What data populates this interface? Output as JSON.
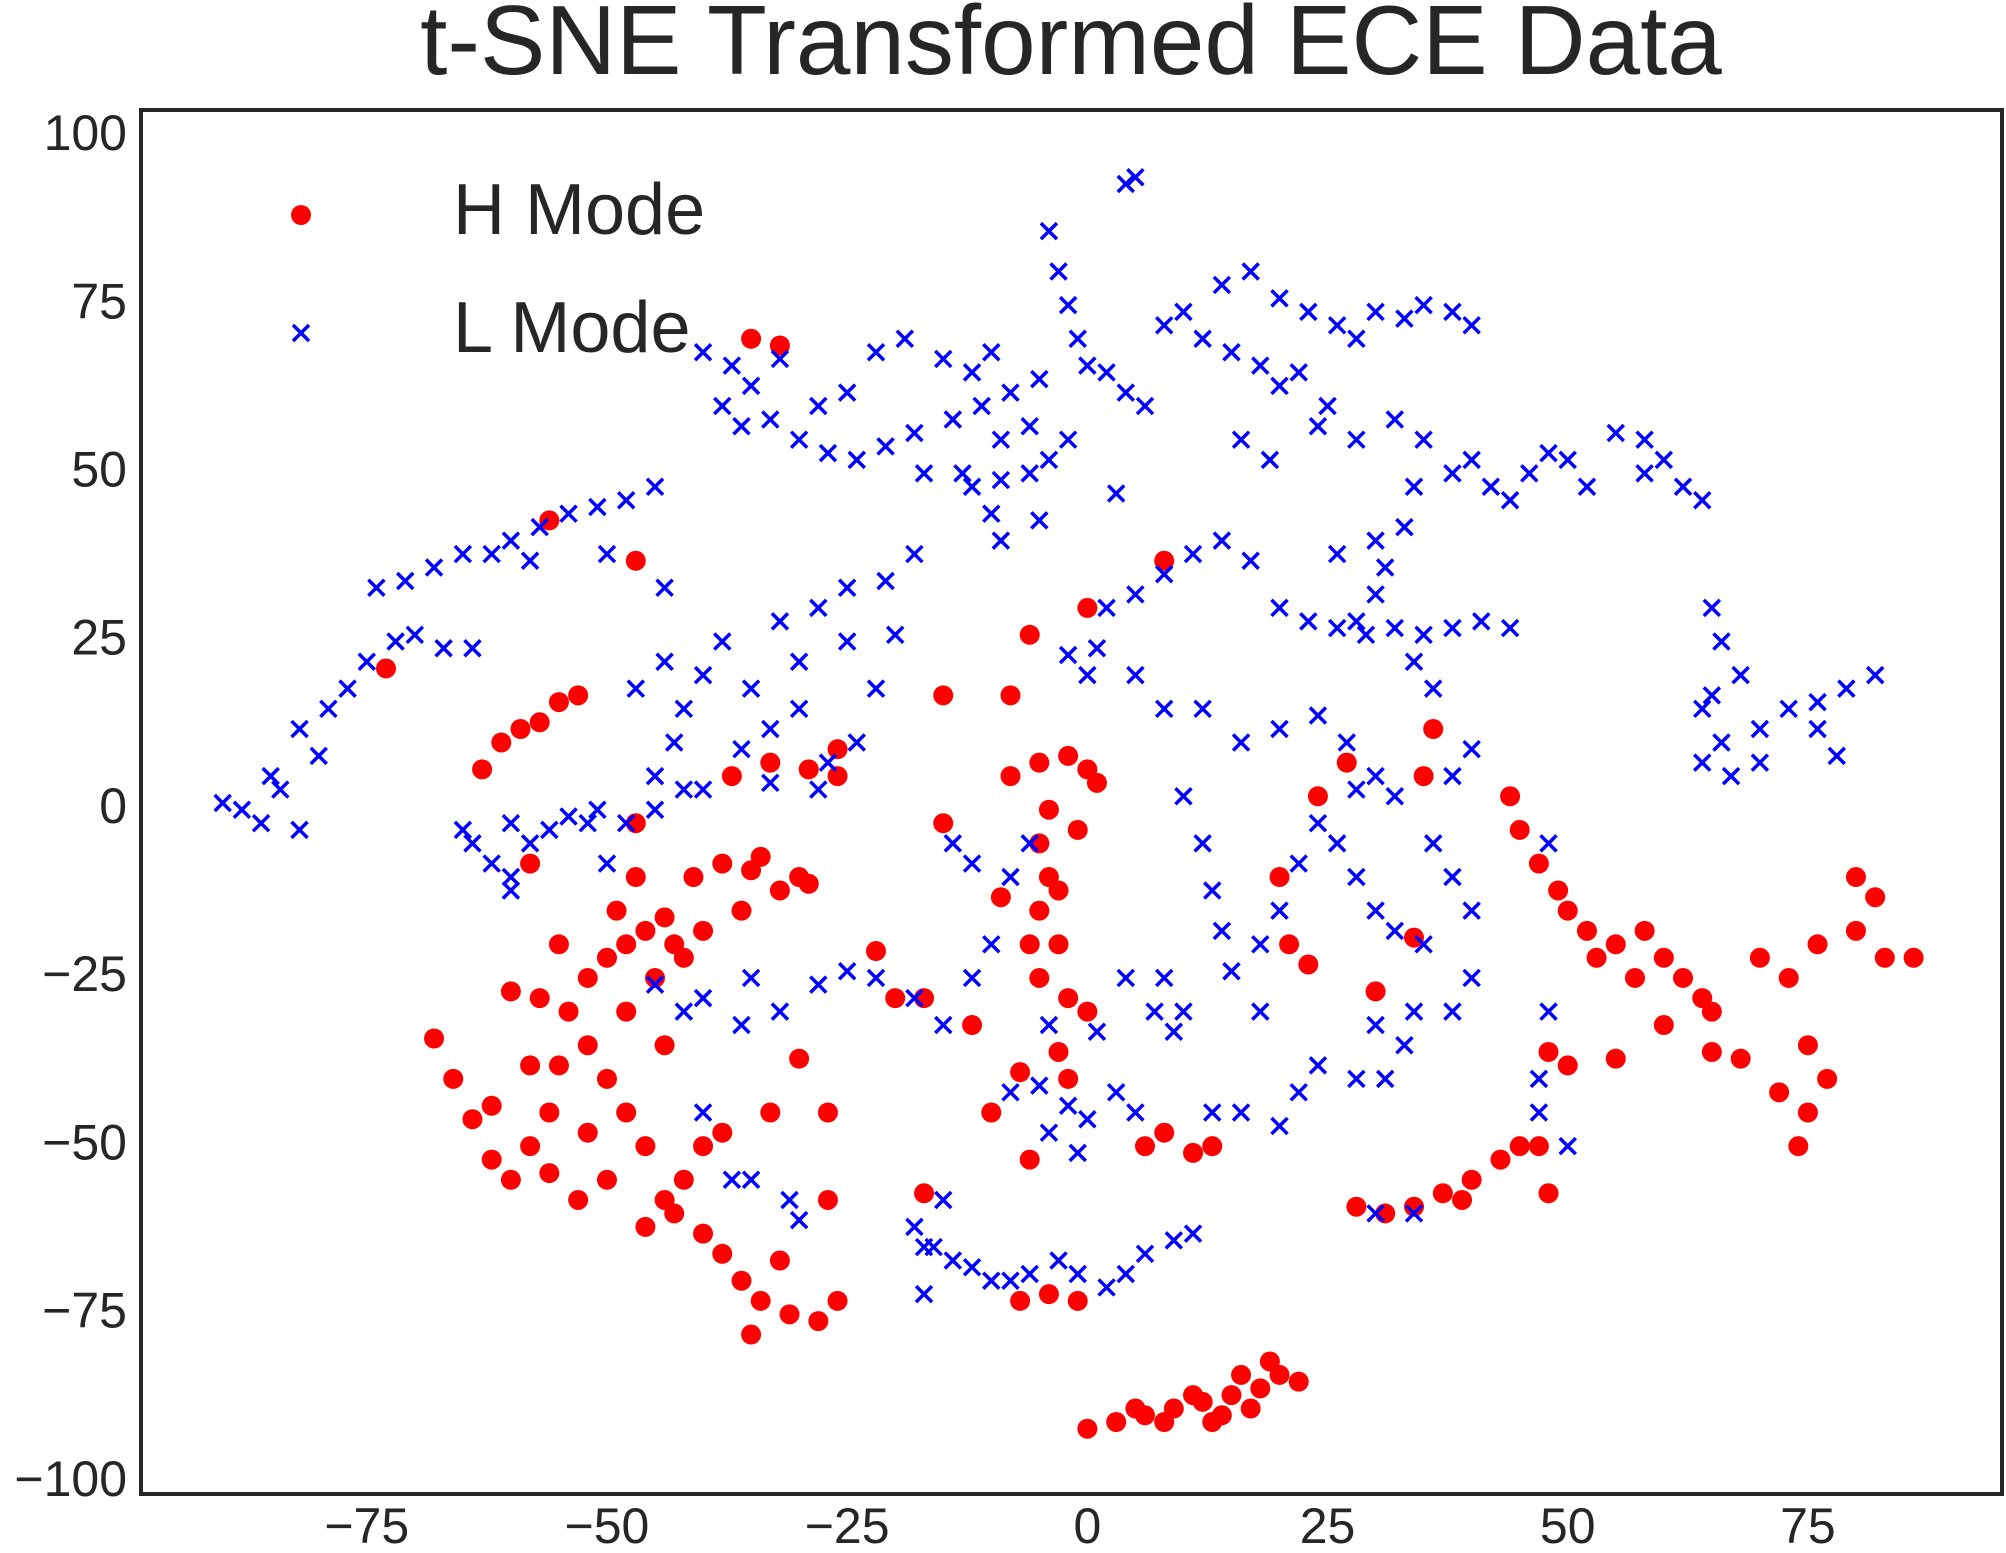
{
  "chart_data": {
    "type": "scatter",
    "title": "t-SNE Transformed ECE Data",
    "xlim": [
      -98.5,
      95.2
    ],
    "ylim": [
      -101.7,
      104
    ],
    "xticks": [
      {
        "value": -75,
        "label": "−75"
      },
      {
        "value": -50,
        "label": "−50"
      },
      {
        "value": -25,
        "label": "−25"
      },
      0,
      25,
      50,
      75
    ],
    "yticks": [
      {
        "value": -100,
        "label": "−100"
      },
      {
        "value": -75,
        "label": "−75"
      },
      {
        "value": -50,
        "label": "−50"
      },
      {
        "value": -25,
        "label": "−25"
      },
      0,
      25,
      50,
      75,
      100
    ],
    "grid": false,
    "legend": "upper left",
    "series": [
      {
        "name": "H Mode",
        "color": "#ff0000",
        "marker": "circle",
        "x": [
          0,
          3,
          6,
          9,
          12,
          15,
          18,
          20,
          22,
          8,
          14,
          17,
          19,
          11,
          5,
          16,
          13,
          -68,
          -66,
          -64,
          -62,
          -60,
          -58,
          -56,
          -55,
          -57,
          -60,
          -54,
          -52,
          -50,
          -48,
          -46,
          -44,
          -52,
          -50,
          -48,
          -46,
          -50,
          -53,
          -56,
          -48,
          -45,
          -44,
          -42,
          -47,
          -58,
          -62,
          -40,
          -42,
          -46,
          -38,
          -52,
          -55,
          -49,
          -41,
          -38,
          -35,
          -32,
          -30,
          -36,
          -40,
          -43,
          -34,
          -29,
          -8,
          -5,
          -2,
          0,
          -4,
          -5,
          -4,
          -5,
          -3,
          -5,
          -2,
          0,
          -6,
          -3,
          -1,
          1,
          44,
          45,
          47,
          49,
          50,
          52,
          55,
          58,
          60,
          62,
          64,
          65,
          57,
          53,
          70,
          73,
          76,
          80,
          83,
          86,
          80,
          82,
          75,
          77,
          75,
          74,
          72,
          68,
          65,
          60,
          55,
          50,
          48,
          -43,
          -40,
          -38,
          -36,
          -34,
          -31,
          -28,
          -26,
          -32,
          -35,
          -44,
          28,
          31,
          34,
          37,
          40,
          43,
          45,
          47,
          39,
          48,
          -61,
          -59,
          -57,
          -55,
          -53,
          -63,
          -47,
          -56,
          -73,
          -30,
          -33,
          -27,
          -27,
          -7,
          -4,
          -1,
          8,
          11,
          6,
          13,
          21,
          24,
          20,
          23,
          -22,
          -17,
          -12,
          -7,
          -9,
          -15,
          8,
          0,
          -6,
          -8,
          -15,
          -26,
          -33,
          -37,
          -47,
          -58,
          -35,
          -32,
          -17,
          -6,
          -10,
          -3,
          36,
          35,
          27,
          34,
          30,
          -29,
          -26,
          -20,
          -2
        ],
        "y": [
          -92,
          -91,
          -90,
          -89,
          -88,
          -87,
          -86,
          -84,
          -85,
          -91,
          -90,
          -89,
          -82,
          -87,
          -89,
          -84,
          -91,
          -34,
          -40,
          -46,
          -52,
          -55,
          -50,
          -45,
          -38,
          -28,
          -27,
          -30,
          -25,
          -22,
          -20,
          -18,
          -16,
          -35,
          -40,
          -45,
          -50,
          -55,
          -58,
          -54,
          -30,
          -25,
          -35,
          -22,
          -10,
          -38,
          -44,
          -50,
          -55,
          -62,
          -48,
          -48,
          -20,
          -15,
          -10,
          -8,
          -9,
          -12,
          -10,
          -15,
          -18,
          -20,
          -7,
          -11,
          5,
          7,
          8,
          6,
          0,
          -5,
          -10,
          -15,
          -20,
          -25,
          -28,
          -30,
          -20,
          -12,
          -3,
          4,
          2,
          -3,
          -8,
          -12,
          -15,
          -18,
          -20,
          -18,
          -22,
          -25,
          -28,
          -30,
          -25,
          -22,
          -22,
          -25,
          -20,
          -18,
          -22,
          -22,
          -10,
          -13,
          -35,
          -40,
          -45,
          -50,
          -42,
          -37,
          -36,
          -32,
          -37,
          -38,
          -36,
          -60,
          -63,
          -66,
          -70,
          -73,
          -75,
          -76,
          -73,
          -67,
          -78,
          -58,
          -59,
          -60,
          -59,
          -57,
          -55,
          -52,
          -50,
          -50,
          -58,
          -57,
          10,
          12,
          13,
          16,
          17,
          6,
          37,
          43,
          21,
          -37,
          -45,
          -45,
          -58,
          -73,
          -72,
          -73,
          -48,
          -51,
          -50,
          -50,
          -20,
          2,
          -10,
          -23,
          -21,
          -28,
          -32,
          -39,
          -13,
          -2,
          37,
          30,
          26,
          17,
          17,
          9,
          7,
          5,
          -2,
          -8,
          70,
          69,
          -57,
          -52,
          -45,
          -36,
          12,
          5,
          7,
          -19,
          -27,
          6,
          5,
          -28,
          -40
        ]
      },
      {
        "name": "L Mode",
        "color": "#0000ff",
        "marker": "x",
        "x": [
          -90,
          -88,
          -86,
          -84,
          -82,
          -80,
          -82,
          -79,
          -77,
          -75,
          -72,
          -70,
          -74,
          -71,
          -68,
          -65,
          -62,
          -60,
          -57,
          -54,
          -51,
          -48,
          -45,
          -67,
          -64,
          -58,
          -50,
          -44,
          -85,
          -64,
          -62,
          -60,
          -58,
          -56,
          -54,
          -51,
          -48,
          -45,
          -42,
          -52,
          -60,
          -65,
          -60,
          -50,
          -45,
          -43,
          -42,
          -40,
          -38,
          -35,
          -33,
          -30,
          -28,
          -25,
          -22,
          -24,
          -27,
          -30,
          -32,
          -36,
          -40,
          -44,
          -47,
          -25,
          -20,
          -28,
          -33,
          -40,
          -37,
          -35,
          -38,
          -36,
          -33,
          -30,
          -27,
          -24,
          -21,
          -18,
          -28,
          -32,
          -25,
          -22,
          -19,
          -15,
          -12,
          -10,
          -8,
          -11,
          -14,
          -6,
          -5,
          -17,
          -13,
          -10,
          -9,
          -18,
          -21,
          -4,
          -3,
          -2,
          -1,
          0,
          2,
          4,
          6,
          -2,
          -4,
          -6,
          -9,
          4,
          5,
          8,
          10,
          12,
          15,
          18,
          20,
          14,
          17,
          20,
          23,
          26,
          28,
          30,
          33,
          35,
          38,
          40,
          22,
          25,
          28,
          16,
          19,
          24,
          32,
          35,
          38,
          40,
          42,
          44,
          46,
          48,
          50,
          52,
          55,
          58,
          60,
          62,
          64,
          58,
          -12,
          -9,
          -5,
          3,
          2,
          5,
          8,
          11,
          14,
          17,
          20,
          23,
          26,
          29,
          32,
          35,
          38,
          41,
          44,
          1,
          0,
          -2,
          5,
          8,
          12,
          16,
          20,
          24,
          27,
          30,
          28,
          31,
          33,
          30,
          26,
          34,
          30,
          34,
          36,
          10,
          12,
          13,
          14,
          15,
          18,
          20,
          22,
          24,
          26,
          28,
          30,
          32,
          35,
          34,
          33,
          31,
          30,
          28,
          24,
          22,
          20,
          16,
          18,
          8,
          9,
          10,
          36,
          38,
          40,
          38,
          40,
          28,
          32,
          38,
          40,
          -18,
          -16,
          -14,
          -12,
          -10,
          -8,
          -6,
          -3,
          -1,
          2,
          4,
          6,
          9,
          11,
          -15,
          -17,
          -5,
          -2,
          0,
          3,
          5,
          -8,
          -1,
          -4,
          13,
          -4,
          1,
          4,
          7,
          -40,
          -36,
          -32,
          -28,
          -25,
          -22,
          -18,
          -15,
          -12,
          -10,
          -8,
          -6,
          -14,
          -12,
          -35,
          -42,
          -45,
          -40,
          -37,
          -35,
          -31,
          -30,
          65,
          66,
          68,
          64,
          66,
          64,
          67,
          70,
          73,
          76,
          79,
          82,
          78,
          70,
          65,
          76,
          48,
          47,
          47,
          50,
          48,
          30,
          34,
          -17
        ],
        "y": [
          1,
          0,
          -2,
          3,
          -3,
          8,
          12,
          15,
          18,
          22,
          25,
          26,
          33,
          34,
          36,
          38,
          38,
          40,
          42,
          44,
          45,
          46,
          48,
          24,
          24,
          37,
          38,
          33,
          5,
          -5,
          -8,
          -10,
          -5,
          -3,
          -1,
          0,
          -2,
          0,
          3,
          -2,
          -12,
          -3,
          -2,
          -8,
          5,
          10,
          15,
          20,
          25,
          18,
          12,
          22,
          30,
          25,
          18,
          10,
          7,
          15,
          28,
          9,
          3,
          22,
          18,
          33,
          26,
          3,
          4,
          68,
          66,
          63,
          60,
          57,
          58,
          55,
          53,
          52,
          54,
          56,
          60,
          67,
          62,
          68,
          70,
          67,
          65,
          68,
          62,
          60,
          58,
          57,
          64,
          50,
          50,
          44,
          40,
          38,
          34,
          86,
          80,
          75,
          70,
          66,
          65,
          62,
          60,
          55,
          52,
          50,
          49,
          93,
          94,
          72,
          74,
          70,
          68,
          66,
          63,
          78,
          80,
          76,
          74,
          72,
          70,
          74,
          73,
          75,
          74,
          72,
          65,
          60,
          55,
          55,
          52,
          57,
          58,
          55,
          50,
          52,
          48,
          46,
          50,
          53,
          52,
          48,
          56,
          55,
          52,
          48,
          46,
          50,
          48,
          55,
          43,
          47,
          30,
          32,
          35,
          38,
          40,
          37,
          30,
          28,
          27,
          26,
          27,
          26,
          27,
          28,
          27,
          24,
          20,
          23,
          20,
          15,
          15,
          10,
          12,
          14,
          10,
          5,
          28,
          36,
          42,
          40,
          38,
          48,
          32,
          22,
          18,
          2,
          -5,
          -12,
          -18,
          -24,
          -20,
          -15,
          -8,
          -2,
          -5,
          -10,
          -15,
          -18,
          -20,
          -30,
          -35,
          -40,
          -32,
          -40,
          -38,
          -42,
          -47,
          -45,
          -30,
          -25,
          -33,
          -30,
          -5,
          -10,
          -15,
          -30,
          -25,
          3,
          2,
          5,
          9,
          -62,
          -65,
          -67,
          -68,
          -70,
          -70,
          -69,
          -67,
          -69,
          -71,
          -69,
          -66,
          -64,
          -63,
          -58,
          -72,
          -41,
          -44,
          -46,
          -42,
          -45,
          -42,
          -51,
          -48,
          -45,
          -32,
          -33,
          -25,
          -30,
          -28,
          -32,
          -30,
          -26,
          -24,
          -25,
          -28,
          -32,
          -25,
          -20,
          -10,
          -5,
          -5,
          -8,
          -25,
          -30,
          -26,
          -45,
          -55,
          -55,
          -58,
          -61,
          30,
          25,
          20,
          15,
          10,
          7,
          5,
          12,
          15,
          16,
          18,
          20,
          8,
          7,
          17,
          12,
          -5,
          -45,
          -40,
          -50,
          -30,
          -60,
          -60,
          -65
        ]
      }
    ]
  }
}
